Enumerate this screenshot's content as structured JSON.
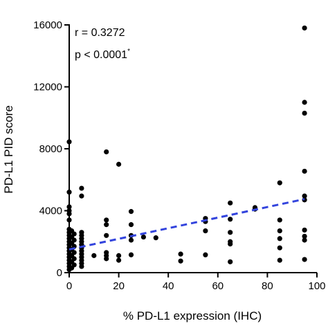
{
  "chart_data": {
    "type": "scatter",
    "xlabel": "% PD-L1 expression (IHC)",
    "ylabel": "PD-L1 PID score",
    "xlim": [
      0,
      100
    ],
    "ylim": [
      0,
      16000
    ],
    "xticks": [
      "0",
      "20",
      "40",
      "60",
      "80",
      "100"
    ],
    "yticks": [
      "0",
      "4000",
      "8000",
      "12000",
      "16000"
    ],
    "annotations": {
      "r": "r = 0.3272",
      "p": "p < 0.0001",
      "p_mark": "*"
    },
    "grid": false,
    "series": [
      {
        "points": [
          [
            0,
            8450
          ],
          [
            0,
            5200
          ],
          [
            0,
            4250
          ],
          [
            0,
            4000
          ],
          [
            0,
            3800
          ],
          [
            0,
            3400
          ],
          [
            0,
            2800
          ],
          [
            0,
            2600
          ],
          [
            0,
            2400
          ],
          [
            0,
            2200
          ],
          [
            0,
            2000
          ],
          [
            0,
            1800
          ],
          [
            0,
            1600
          ],
          [
            0,
            1400
          ],
          [
            0,
            1200
          ],
          [
            0,
            1000
          ],
          [
            0,
            800
          ],
          [
            0,
            600
          ],
          [
            0,
            400
          ],
          [
            0,
            200
          ],
          [
            1,
            2700
          ],
          [
            1,
            2300
          ],
          [
            1,
            1900
          ],
          [
            1,
            1500
          ],
          [
            1,
            1100
          ],
          [
            1,
            700
          ],
          [
            1,
            300
          ],
          [
            2,
            2500
          ],
          [
            2,
            2100
          ],
          [
            2,
            1700
          ],
          [
            2,
            1300
          ],
          [
            2,
            900
          ],
          [
            2,
            500
          ],
          [
            5,
            5450
          ],
          [
            5,
            4950
          ],
          [
            5,
            2600
          ],
          [
            5,
            2400
          ],
          [
            5,
            2200
          ],
          [
            5,
            2000
          ],
          [
            5,
            1800
          ],
          [
            5,
            1600
          ],
          [
            5,
            1400
          ],
          [
            5,
            1200
          ],
          [
            5,
            1000
          ],
          [
            5,
            800
          ],
          [
            5,
            600
          ],
          [
            5,
            400
          ],
          [
            10,
            1100
          ],
          [
            15,
            7800
          ],
          [
            15,
            3400
          ],
          [
            15,
            3100
          ],
          [
            15,
            2400
          ],
          [
            15,
            1300
          ],
          [
            15,
            1100
          ],
          [
            15,
            900
          ],
          [
            20,
            7000
          ],
          [
            20,
            1100
          ],
          [
            20,
            800
          ],
          [
            25,
            3950
          ],
          [
            25,
            3100
          ],
          [
            25,
            2400
          ],
          [
            25,
            2100
          ],
          [
            25,
            1150
          ],
          [
            30,
            2300
          ],
          [
            35,
            2250
          ],
          [
            45,
            1200
          ],
          [
            45,
            750
          ],
          [
            55,
            3500
          ],
          [
            55,
            3300
          ],
          [
            55,
            2700
          ],
          [
            55,
            1150
          ],
          [
            65,
            4500
          ],
          [
            65,
            3450
          ],
          [
            65,
            2600
          ],
          [
            65,
            2000
          ],
          [
            65,
            1850
          ],
          [
            65,
            700
          ],
          [
            75,
            4200
          ],
          [
            75,
            4100
          ],
          [
            85,
            5800
          ],
          [
            85,
            3400
          ],
          [
            85,
            2700
          ],
          [
            85,
            2200
          ],
          [
            85,
            1600
          ],
          [
            85,
            800
          ],
          [
            95,
            15800
          ],
          [
            95,
            11000
          ],
          [
            95,
            10300
          ],
          [
            95,
            6550
          ],
          [
            95,
            4950
          ],
          [
            95,
            4700
          ],
          [
            95,
            2750
          ],
          [
            95,
            2350
          ],
          [
            95,
            2100
          ],
          [
            95,
            850
          ]
        ],
        "color": "#000000"
      }
    ],
    "trendline": {
      "x": [
        0,
        95
      ],
      "y": [
        1500,
        4750
      ],
      "color": "#3344dd",
      "style": "dashed"
    }
  }
}
